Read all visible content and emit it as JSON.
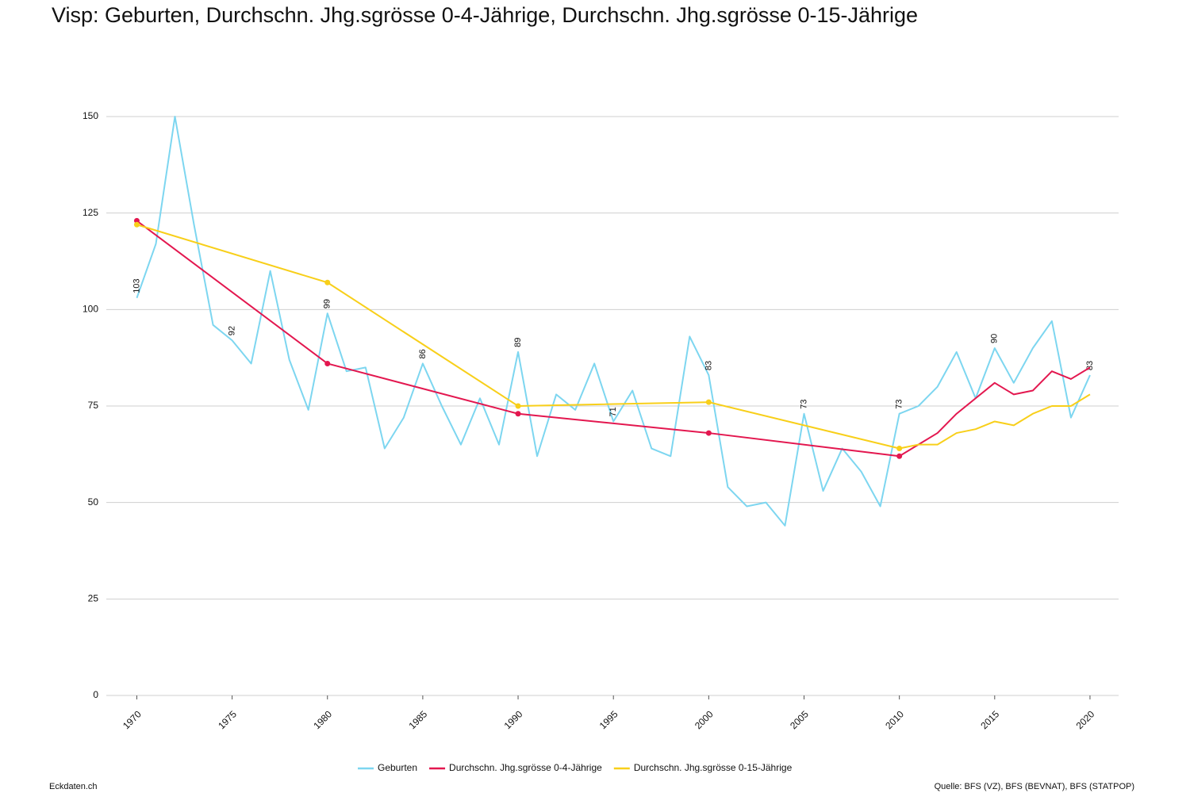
{
  "chart_data": {
    "type": "line",
    "title": "Visp: Geburten, Durchschn. Jhg.sgrösse 0-4-Jährige, Durchschn. Jhg.sgrösse 0-15-Jährige",
    "footer_left": "Eckdaten.ch",
    "source": "Quelle: BFS (VZ), BFS (BEVNAT), BFS (STATPOP)",
    "xlim": [
      1968.4,
      2021.5
    ],
    "xticks": [
      1970,
      1975,
      1980,
      1985,
      1990,
      1995,
      2000,
      2005,
      2010,
      2015,
      2020
    ],
    "ylim": [
      0,
      150
    ],
    "yticks": [
      0,
      25,
      50,
      75,
      100,
      125,
      150
    ],
    "grid": true,
    "legend": "bottom",
    "series": [
      {
        "name": "Geburten",
        "color": "#7dd6f0",
        "data_label_step": 5,
        "x": [
          1970,
          1971,
          1972,
          1973,
          1974,
          1975,
          1976,
          1977,
          1978,
          1979,
          1980,
          1981,
          1982,
          1983,
          1984,
          1985,
          1986,
          1987,
          1988,
          1989,
          1990,
          1991,
          1992,
          1993,
          1994,
          1995,
          1996,
          1997,
          1998,
          1999,
          2000,
          2001,
          2002,
          2003,
          2004,
          2005,
          2006,
          2007,
          2008,
          2009,
          2010,
          2011,
          2012,
          2013,
          2014,
          2015,
          2016,
          2017,
          2018,
          2019,
          2020
        ],
        "values": [
          103,
          117,
          150,
          122,
          96,
          92,
          86,
          110,
          87,
          74,
          99,
          84,
          85,
          64,
          72,
          86,
          75,
          65,
          77,
          65,
          89,
          62,
          78,
          74,
          86,
          71,
          79,
          64,
          62,
          93,
          83,
          54,
          49,
          50,
          44,
          73,
          53,
          64,
          58,
          49,
          73,
          75,
          80,
          89,
          77,
          90,
          81,
          90,
          97,
          72,
          83
        ]
      },
      {
        "name": "Durchschn. Jhg.sgrösse 0-4-Jährige",
        "color": "#e3174f",
        "marker_x": [
          1970,
          1980,
          1990,
          2000,
          2010
        ],
        "x": [
          1970,
          1980,
          1990,
          2000,
          2010,
          2011,
          2012,
          2013,
          2014,
          2015,
          2016,
          2017,
          2018,
          2019,
          2020
        ],
        "values": [
          123,
          86,
          73,
          68,
          62,
          65,
          68,
          73,
          77,
          81,
          78,
          79,
          84,
          82,
          85
        ]
      },
      {
        "name": "Durchschn. Jhg.sgrösse 0-15-Jährige",
        "color": "#f8cf1a",
        "marker_x": [
          1970,
          1980,
          1990,
          2000,
          2010
        ],
        "x": [
          1970,
          1980,
          1990,
          2000,
          2010,
          2011,
          2012,
          2013,
          2014,
          2015,
          2016,
          2017,
          2018,
          2019,
          2020
        ],
        "values": [
          122,
          107,
          75,
          76,
          64,
          65,
          65,
          68,
          69,
          71,
          70,
          73,
          75,
          75,
          78
        ]
      }
    ]
  }
}
